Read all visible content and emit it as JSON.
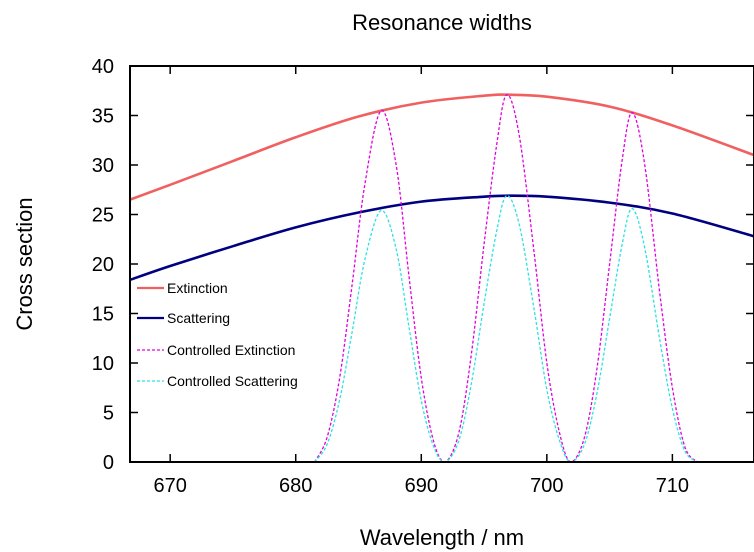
{
  "chart_data": {
    "type": "line",
    "title": "Resonance widths",
    "xlabel": "Wavelength / nm",
    "ylabel": "Cross section",
    "xlim": [
      666.8,
      716.5
    ],
    "ylim": [
      0,
      40
    ],
    "xticks": [
      670,
      680,
      690,
      700,
      710
    ],
    "yticks": [
      0,
      5,
      10,
      15,
      20,
      25,
      30,
      35,
      40
    ],
    "grid": false,
    "legend_position": "lower-left",
    "series": [
      {
        "name": "Extinction",
        "color": "#f06060",
        "dash": "solid",
        "x": [
          666.8,
          670,
          675,
          680,
          685,
          690,
          695,
          697,
          700,
          705,
          710,
          716.5
        ],
        "y": [
          26.5,
          28.0,
          30.4,
          32.8,
          34.9,
          36.3,
          37.0,
          37.1,
          36.9,
          35.9,
          34.0,
          31.0
        ]
      },
      {
        "name": "Scattering",
        "color": "#000080",
        "dash": "solid",
        "x": [
          666.8,
          670,
          675,
          680,
          685,
          690,
          695,
          697,
          700,
          705,
          710,
          716.5
        ],
        "y": [
          18.4,
          19.8,
          21.8,
          23.7,
          25.2,
          26.3,
          26.8,
          26.9,
          26.8,
          26.2,
          25.1,
          22.8
        ]
      },
      {
        "name": "Controlled Extinction",
        "color": "#e000e0",
        "dash": "dashed",
        "x": [
          681.5,
          682.5,
          683.5,
          684.5,
          685.5,
          686.8,
          688,
          689,
          690,
          691,
          691.9,
          693,
          694,
          695,
          696,
          696.8,
          697.8,
          699,
          700,
          701,
          701.9,
          703,
          704,
          705,
          706,
          706.8,
          707.8,
          709,
          710,
          711,
          712
        ],
        "y": [
          0,
          2.5,
          8.5,
          18.0,
          28.0,
          35.5,
          30.0,
          19.0,
          8.5,
          2.0,
          0,
          3.0,
          11.0,
          22.0,
          32.0,
          37.1,
          33.0,
          21.0,
          10.0,
          3.0,
          0,
          2.5,
          9.5,
          20.0,
          30.5,
          35.3,
          30.0,
          17.0,
          7.5,
          1.5,
          0
        ]
      },
      {
        "name": "Controlled Scattering",
        "color": "#30e0e0",
        "dash": "dashed",
        "x": [
          681.5,
          682.5,
          683.5,
          684.5,
          685.5,
          686.8,
          688,
          689,
          690,
          691,
          691.9,
          693,
          694,
          695,
          696,
          696.8,
          697.8,
          699,
          700,
          701,
          701.9,
          703,
          704,
          705,
          706,
          706.8,
          707.8,
          709,
          710,
          711,
          712
        ],
        "y": [
          0,
          1.8,
          6.3,
          13.2,
          20.4,
          25.4,
          21.5,
          13.8,
          6.2,
          1.5,
          0,
          2.2,
          8.0,
          16.0,
          23.3,
          26.9,
          24.0,
          15.3,
          7.3,
          2.2,
          0,
          1.8,
          7.0,
          14.5,
          22.0,
          25.6,
          21.6,
          12.3,
          5.4,
          1.1,
          0
        ]
      }
    ]
  }
}
